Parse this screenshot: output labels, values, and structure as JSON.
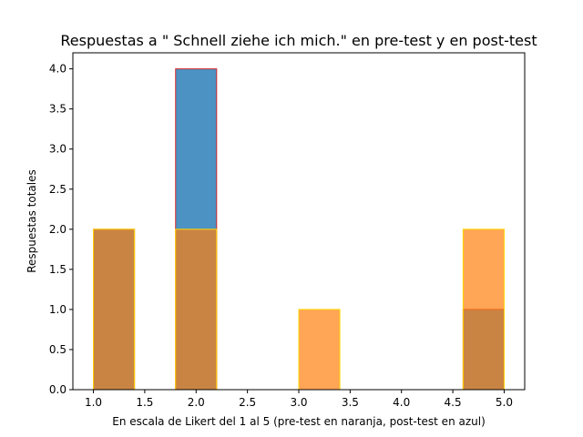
{
  "chart_data": {
    "type": "bar",
    "title": "Respuestas a \" Schnell ziehe ich mich.\" en pre-test y en post-test",
    "xlabel": "En escala de Likert del 1 al 5 (pre-test en naranja, post-test en azul)",
    "ylabel": "Respuestas totales",
    "xlim": [
      0.8,
      5.2
    ],
    "ylim": [
      0,
      4.2
    ],
    "xticks": [
      1.0,
      1.5,
      2.0,
      2.5,
      3.0,
      3.5,
      4.0,
      4.5,
      5.0
    ],
    "yticks": [
      0.0,
      0.5,
      1.0,
      1.5,
      2.0,
      2.5,
      3.0,
      3.5,
      4.0
    ],
    "xtick_labels": [
      "1.0",
      "1.5",
      "2.0",
      "2.5",
      "3.0",
      "3.5",
      "4.0",
      "4.5",
      "5.0"
    ],
    "ytick_labels": [
      "0.0",
      "0.5",
      "1.0",
      "1.5",
      "2.0",
      "2.5",
      "3.0",
      "3.5",
      "4.0"
    ],
    "bins": [
      [
        1.0,
        1.4
      ],
      [
        1.4,
        1.8
      ],
      [
        1.8,
        2.2
      ],
      [
        2.2,
        2.6
      ],
      [
        2.6,
        3.0
      ],
      [
        3.0,
        3.4
      ],
      [
        3.4,
        3.8
      ],
      [
        3.8,
        4.2
      ],
      [
        4.2,
        4.6
      ],
      [
        4.6,
        5.0
      ]
    ],
    "series": [
      {
        "role": "post-test",
        "values": [
          2,
          0,
          4,
          0,
          0,
          0,
          0,
          0,
          0,
          1
        ],
        "fill": "#1f77b4",
        "edge": "#d62728",
        "opacity": 0.8
      },
      {
        "role": "pre-test",
        "values": [
          2,
          0,
          2,
          0,
          0,
          1,
          0,
          0,
          0,
          2
        ],
        "fill": "#ff7f0e",
        "edge": "#ffd700",
        "opacity": 0.7
      }
    ],
    "grid": false
  }
}
